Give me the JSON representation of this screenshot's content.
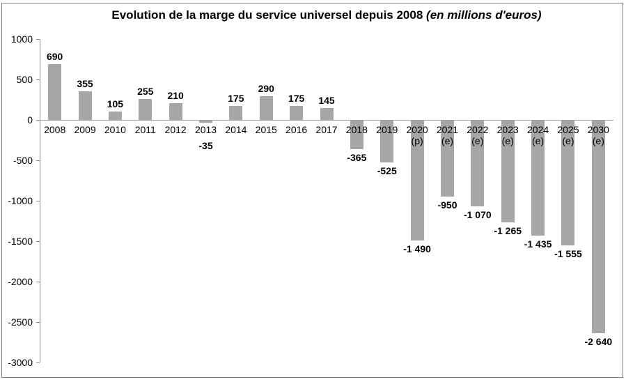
{
  "title": {
    "text": "Evolution de la marge du service universel depuis 2008",
    "unit_suffix": "(en millions d'euros)"
  },
  "chart_data": {
    "type": "bar",
    "title": "Evolution de la marge du service universel depuis 2008",
    "subtitle": "(en millions d'euros)",
    "xlabel": "",
    "ylabel": "",
    "categories": [
      "2008",
      "2009",
      "2010",
      "2011",
      "2012",
      "2013",
      "2014",
      "2015",
      "2016",
      "2017",
      "2018",
      "2019",
      "2020",
      "2021",
      "2022",
      "2023",
      "2024",
      "2025",
      "2030"
    ],
    "category_sublabels": [
      "",
      "",
      "",
      "",
      "",
      "",
      "",
      "",
      "",
      "",
      "",
      "",
      "(p)",
      "(e)",
      "(e)",
      "(e)",
      "(e)",
      "(e)",
      "(e)"
    ],
    "values": [
      690,
      355,
      105,
      255,
      210,
      -35,
      175,
      290,
      175,
      145,
      -365,
      -525,
      -1490,
      -950,
      -1070,
      -1265,
      -1435,
      -1555,
      -2640
    ],
    "value_labels": [
      "690",
      "355",
      "105",
      "255",
      "210",
      "-35",
      "175",
      "290",
      "175",
      "145",
      "-365",
      "-525",
      "-1 490",
      "-950",
      "-1 070",
      "-1 265",
      "-1 435",
      "-1 555",
      "-2 640"
    ],
    "ylim": [
      -3000,
      1000
    ],
    "yticks": [
      1000,
      500,
      0,
      -500,
      -1000,
      -1500,
      -2000,
      -2500,
      -3000
    ],
    "grid": false,
    "legend": false,
    "bar_color": "#A6A6A6",
    "axis_color": "#898989",
    "zero_line_color": "#A0A0A0",
    "text_color": "#000000",
    "frame_border_color": "#808080"
  }
}
